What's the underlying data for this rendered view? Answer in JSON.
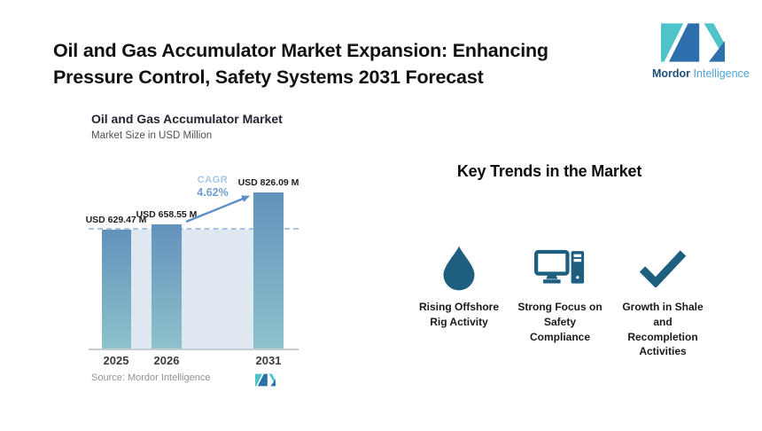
{
  "page": {
    "title_line1": "Oil and Gas Accumulator Market Expansion: Enhancing",
    "title_line2": "Pressure Control, Safety Systems 2031 Forecast"
  },
  "brand": {
    "name_bold": "Mordor",
    "name_light": "Intelligence",
    "teal": "#4EC3C8",
    "blue": "#2C6FAC"
  },
  "chart_data": {
    "type": "bar",
    "title": "Oil and Gas Accumulator Market",
    "subtitle": "Market Size in USD Million",
    "categories": [
      "2025",
      "2026",
      "2031"
    ],
    "values": [
      629.47,
      658.55,
      826.09
    ],
    "value_labels": [
      "USD 629.47 M",
      "USD 658.55 M",
      "USD 826.09 M"
    ],
    "cagr_label": "CAGR",
    "cagr_value": "4.62%",
    "ylim": [
      0,
      826.09
    ],
    "grid": "off",
    "reference_line": "horizontal dashed line at 2025 value (629.47)",
    "source": "Source: Mordor Intelligence",
    "bar_gradient_top": "#6292BC",
    "bar_gradient_bottom": "#8EC2CB",
    "band_color": "#DFE8F1",
    "dashed_line_color": "#A9C3DE",
    "arrow_color": "#5C8FC4"
  },
  "trends": {
    "heading": "Key Trends in the Market",
    "icon_color": "#1E5F80",
    "items": [
      {
        "icon": "water-drop-icon",
        "label": "Rising Offshore\nRig Activity"
      },
      {
        "icon": "computer-icon",
        "label": "Strong Focus on\nSafety\nCompliance"
      },
      {
        "icon": "checkmark-icon",
        "label": "Growth in Shale\nand\nRecompletion\nActivities"
      }
    ]
  }
}
